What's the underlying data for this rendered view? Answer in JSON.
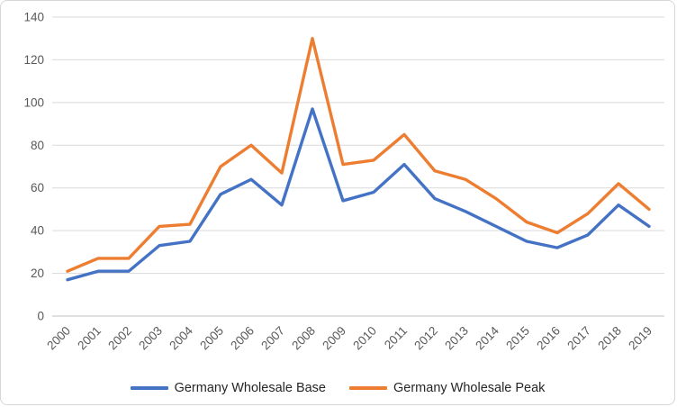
{
  "chart_data": {
    "type": "line",
    "title": "",
    "xlabel": "",
    "ylabel": "",
    "categories": [
      "2000",
      "2001",
      "2002",
      "2003",
      "2004",
      "2005",
      "2006",
      "2007",
      "2008",
      "2009",
      "2010",
      "2011",
      "2012",
      "2013",
      "2014",
      "2015",
      "2016",
      "2017",
      "2018",
      "2019"
    ],
    "series": [
      {
        "name": "Germany Wholesale Base",
        "color": "#4472C4",
        "values": [
          17,
          21,
          21,
          33,
          35,
          57,
          64,
          52,
          97,
          54,
          58,
          71,
          55,
          49,
          42,
          35,
          32,
          38,
          52,
          42
        ]
      },
      {
        "name": "Germany Wholesale Peak",
        "color": "#ED7D31",
        "values": [
          21,
          27,
          27,
          42,
          43,
          70,
          80,
          67,
          130,
          71,
          73,
          85,
          68,
          64,
          55,
          44,
          39,
          48,
          62,
          50
        ]
      }
    ],
    "ylim": [
      0,
      140
    ],
    "ytick_step": 20,
    "grid": true,
    "legend_position": "bottom",
    "gridline_color": "#D9D9D9",
    "axis_line_color": "#BFBFBF",
    "tick_label_color": "#595959"
  }
}
